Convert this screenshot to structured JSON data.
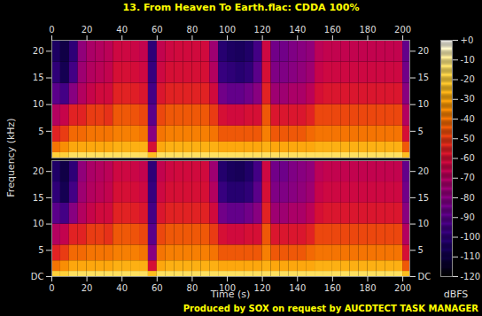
{
  "chart_data": {
    "type": "spectrogram",
    "title": "13. From Heaven To Earth.flac: CDDA 100%",
    "caption": "Produced by SOX on request by AUCDTECT TASK MANAGER",
    "x_label": "Time (s)",
    "y_label": "Frequency (kHz)",
    "xlim": [
      0,
      204
    ],
    "xticks": [
      0,
      20,
      40,
      60,
      80,
      100,
      120,
      140,
      160,
      180,
      200
    ],
    "ylim": [
      0,
      22.05
    ],
    "time_bins": [
      0,
      5,
      10,
      15,
      20,
      25,
      30,
      35,
      40,
      45,
      50,
      55,
      60,
      65,
      70,
      75,
      80,
      85,
      90,
      95,
      100,
      105,
      110,
      115,
      120,
      125,
      130,
      135,
      140,
      145,
      150,
      155,
      160,
      165,
      170,
      175,
      180,
      185,
      190,
      195,
      200,
      204
    ],
    "freq_bins": [
      0,
      1,
      3,
      6,
      10,
      14,
      18,
      22.05
    ],
    "colorbar": {
      "label": "dBFS",
      "range": [
        -120,
        0
      ],
      "ticks": [
        {
          "value": 0,
          "label": "+0"
        },
        -10,
        -20,
        -30,
        -40,
        -50,
        -60,
        -70,
        -80,
        -90,
        -100,
        -110,
        -120
      ]
    },
    "channels": [
      {
        "yticks": [
          5,
          10,
          15,
          20
        ],
        "cells": [
          [
            -20,
            -40,
            -55,
            -70,
            -90,
            -100,
            -105
          ],
          [
            -20,
            -35,
            -50,
            -65,
            -95,
            -108,
            -110
          ],
          [
            -15,
            -30,
            -42,
            -55,
            -80,
            -95,
            -100
          ],
          [
            -15,
            -30,
            -42,
            -55,
            -70,
            -75,
            -78
          ],
          [
            -15,
            -30,
            -40,
            -50,
            -65,
            -70,
            -72
          ],
          [
            -15,
            -30,
            -40,
            -50,
            -62,
            -68,
            -70
          ],
          [
            -15,
            -30,
            -40,
            -52,
            -62,
            -66,
            -68
          ],
          [
            -15,
            -28,
            -38,
            -45,
            -55,
            -60,
            -63
          ],
          [
            -15,
            -28,
            -38,
            -45,
            -55,
            -60,
            -63
          ],
          [
            -15,
            -28,
            -38,
            -46,
            -56,
            -61,
            -64
          ],
          [
            -15,
            -28,
            -40,
            -48,
            -58,
            -63,
            -66
          ],
          [
            -25,
            -60,
            -80,
            -90,
            -95,
            -98,
            -100
          ],
          [
            -15,
            -30,
            -40,
            -48,
            -58,
            -63,
            -66
          ],
          [
            -15,
            -28,
            -38,
            -45,
            -55,
            -60,
            -63
          ],
          [
            -15,
            -28,
            -38,
            -45,
            -55,
            -60,
            -62
          ],
          [
            -15,
            -28,
            -38,
            -45,
            -55,
            -60,
            -62
          ],
          [
            -15,
            -28,
            -38,
            -45,
            -55,
            -60,
            -62
          ],
          [
            -15,
            -28,
            -38,
            -45,
            -55,
            -60,
            -62
          ],
          [
            -15,
            -28,
            -40,
            -50,
            -62,
            -70,
            -75
          ],
          [
            -15,
            -30,
            -45,
            -60,
            -85,
            -98,
            -102
          ],
          [
            -15,
            -30,
            -45,
            -62,
            -88,
            -100,
            -105
          ],
          [
            -15,
            -30,
            -45,
            -62,
            -88,
            -102,
            -106
          ],
          [
            -15,
            -30,
            -45,
            -60,
            -85,
            -100,
            -104
          ],
          [
            -15,
            -30,
            -45,
            -60,
            -80,
            -90,
            -95
          ],
          [
            -15,
            -28,
            -38,
            -45,
            -55,
            -60,
            -63
          ],
          [
            -15,
            -30,
            -45,
            -58,
            -75,
            -82,
            -85
          ],
          [
            -15,
            -30,
            -45,
            -58,
            -75,
            -82,
            -85
          ],
          [
            -15,
            -30,
            -45,
            -58,
            -72,
            -80,
            -82
          ],
          [
            -15,
            -30,
            -45,
            -58,
            -72,
            -78,
            -80
          ],
          [
            -15,
            -30,
            -42,
            -55,
            -68,
            -75,
            -78
          ],
          [
            -15,
            -28,
            -40,
            -48,
            -60,
            -65,
            -68
          ],
          [
            -15,
            -28,
            -40,
            -48,
            -58,
            -63,
            -66
          ],
          [
            -15,
            -28,
            -40,
            -48,
            -58,
            -63,
            -66
          ],
          [
            -15,
            -28,
            -40,
            -48,
            -58,
            -63,
            -66
          ],
          [
            -15,
            -28,
            -40,
            -48,
            -58,
            -63,
            -66
          ],
          [
            -15,
            -28,
            -40,
            -48,
            -58,
            -63,
            -66
          ],
          [
            -15,
            -28,
            -40,
            -48,
            -58,
            -63,
            -66
          ],
          [
            -15,
            -28,
            -40,
            -48,
            -58,
            -63,
            -66
          ],
          [
            -15,
            -28,
            -40,
            -48,
            -58,
            -63,
            -66
          ],
          [
            -15,
            -28,
            -40,
            -48,
            -58,
            -63,
            -66
          ],
          [
            -25,
            -45,
            -60,
            -70,
            -80,
            -85,
            -88
          ]
        ]
      },
      {
        "yticks": [
          {
            "value": 0,
            "label": "DC"
          },
          5,
          10,
          15,
          20
        ],
        "cells": [
          [
            -20,
            -40,
            -55,
            -70,
            -90,
            -100,
            -104
          ],
          [
            -20,
            -35,
            -50,
            -66,
            -95,
            -108,
            -110
          ],
          [
            -15,
            -30,
            -42,
            -55,
            -80,
            -95,
            -100
          ],
          [
            -15,
            -30,
            -42,
            -55,
            -70,
            -75,
            -78
          ],
          [
            -15,
            -30,
            -40,
            -50,
            -65,
            -70,
            -72
          ],
          [
            -15,
            -30,
            -40,
            -50,
            -62,
            -68,
            -70
          ],
          [
            -15,
            -30,
            -40,
            -52,
            -62,
            -66,
            -68
          ],
          [
            -15,
            -28,
            -38,
            -45,
            -55,
            -60,
            -63
          ],
          [
            -15,
            -28,
            -38,
            -45,
            -55,
            -60,
            -63
          ],
          [
            -15,
            -28,
            -38,
            -46,
            -56,
            -61,
            -64
          ],
          [
            -15,
            -28,
            -40,
            -48,
            -58,
            -63,
            -66
          ],
          [
            -25,
            -60,
            -80,
            -90,
            -95,
            -98,
            -100
          ],
          [
            -15,
            -30,
            -40,
            -48,
            -58,
            -63,
            -66
          ],
          [
            -15,
            -28,
            -38,
            -45,
            -55,
            -60,
            -63
          ],
          [
            -15,
            -28,
            -38,
            -45,
            -55,
            -60,
            -62
          ],
          [
            -15,
            -28,
            -38,
            -45,
            -55,
            -60,
            -62
          ],
          [
            -15,
            -28,
            -38,
            -45,
            -55,
            -60,
            -62
          ],
          [
            -15,
            -28,
            -38,
            -45,
            -55,
            -60,
            -62
          ],
          [
            -15,
            -28,
            -40,
            -50,
            -62,
            -70,
            -75
          ],
          [
            -15,
            -30,
            -45,
            -60,
            -85,
            -98,
            -103
          ],
          [
            -15,
            -30,
            -45,
            -62,
            -88,
            -102,
            -106
          ],
          [
            -15,
            -30,
            -45,
            -62,
            -88,
            -102,
            -107
          ],
          [
            -15,
            -30,
            -45,
            -60,
            -85,
            -100,
            -104
          ],
          [
            -15,
            -30,
            -45,
            -60,
            -80,
            -90,
            -95
          ],
          [
            -15,
            -28,
            -38,
            -45,
            -55,
            -60,
            -63
          ],
          [
            -15,
            -30,
            -45,
            -58,
            -75,
            -82,
            -85
          ],
          [
            -15,
            -30,
            -45,
            -58,
            -75,
            -82,
            -86
          ],
          [
            -15,
            -30,
            -45,
            -58,
            -72,
            -80,
            -82
          ],
          [
            -15,
            -30,
            -45,
            -58,
            -72,
            -78,
            -80
          ],
          [
            -15,
            -30,
            -42,
            -55,
            -68,
            -75,
            -78
          ],
          [
            -15,
            -28,
            -40,
            -48,
            -60,
            -65,
            -68
          ],
          [
            -15,
            -28,
            -40,
            -48,
            -58,
            -63,
            -66
          ],
          [
            -15,
            -28,
            -40,
            -48,
            -58,
            -63,
            -66
          ],
          [
            -15,
            -28,
            -40,
            -48,
            -58,
            -63,
            -66
          ],
          [
            -15,
            -28,
            -40,
            -48,
            -58,
            -63,
            -66
          ],
          [
            -15,
            -28,
            -40,
            -48,
            -58,
            -63,
            -66
          ],
          [
            -15,
            -28,
            -40,
            -48,
            -58,
            -63,
            -66
          ],
          [
            -15,
            -28,
            -40,
            -48,
            -58,
            -63,
            -66
          ],
          [
            -15,
            -28,
            -40,
            -48,
            -58,
            -63,
            -66
          ],
          [
            -15,
            -28,
            -40,
            -48,
            -58,
            -63,
            -66
          ],
          [
            -25,
            -45,
            -60,
            -70,
            -80,
            -85,
            -88
          ]
        ]
      }
    ]
  }
}
